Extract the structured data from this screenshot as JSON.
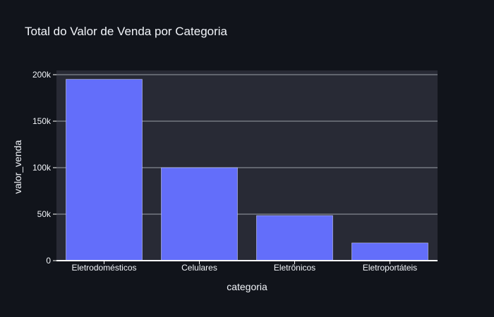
{
  "chart_data": {
    "type": "bar",
    "title": "Total do Valor de Venda por Categoria",
    "xlabel": "categoria",
    "ylabel": "valor_venda",
    "categories": [
      "Eletrodomésticos",
      "Celulares",
      "Eletrônicos",
      "Eletroportáteis"
    ],
    "values": [
      195000,
      100000,
      48500,
      19000
    ],
    "ylim": [
      0,
      200000
    ],
    "yticks": [
      0,
      50000,
      100000,
      150000,
      200000
    ],
    "ytick_labels": [
      "0",
      "50k",
      "100k",
      "150k",
      "200k"
    ],
    "grid": true,
    "legend": "none"
  },
  "colors": {
    "page_background": "#11141b",
    "plot_background": "#282a35",
    "grid": "#9aa0a6",
    "bar_fill": "#636efa",
    "bar_stroke": "#d9dcff",
    "text": "#f2f5fa"
  }
}
